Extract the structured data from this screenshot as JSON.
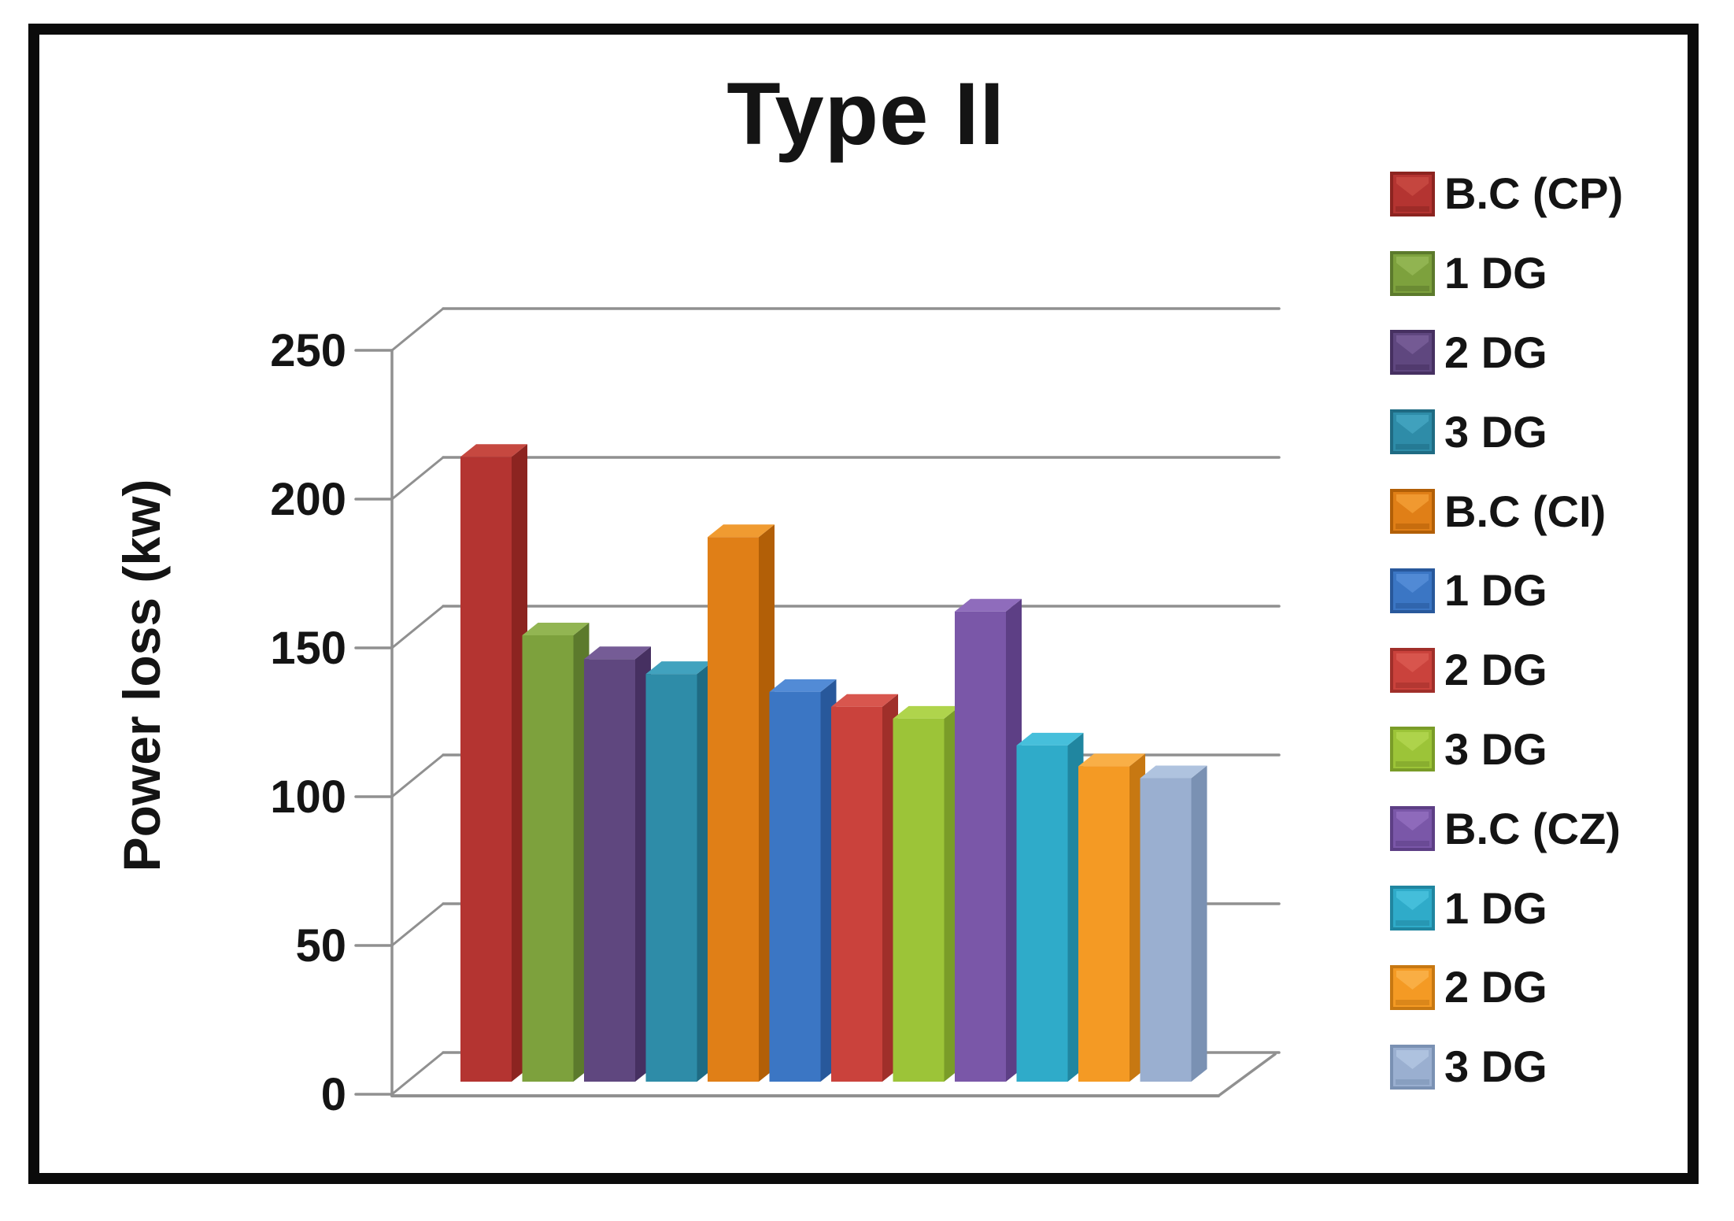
{
  "figure": {
    "background": "#ffffff",
    "border_color": "#0b0b0b",
    "gridline_color": "#909090"
  },
  "chart_data": {
    "type": "bar",
    "style": "3d-column",
    "title": "Type II",
    "ylabel": "Power loss (kw)",
    "xlabel": "",
    "ylim": [
      0,
      250
    ],
    "yticks": [
      0,
      50,
      100,
      150,
      200,
      250
    ],
    "grid": true,
    "legend_position": "right",
    "categories": [
      "B.C (CP)",
      "1 DG",
      "2 DG",
      "3 DG",
      "B.C (CI)",
      "1 DG",
      "2 DG",
      "3 DG",
      "B.C (CZ)",
      "1 DG",
      "2 DG",
      "3 DG"
    ],
    "series": [
      {
        "name": "B.C (CP)",
        "value": 210,
        "color": "#B43431",
        "side": "#8C2420",
        "top": "#C64840"
      },
      {
        "name": "1 DG",
        "value": 150,
        "color": "#7DA13D",
        "side": "#5C7A2C",
        "top": "#92B552"
      },
      {
        "name": "2 DG",
        "value": 142,
        "color": "#5F477F",
        "side": "#463061",
        "top": "#755C96"
      },
      {
        "name": "3 DG",
        "value": 137,
        "color": "#2E8CA8",
        "side": "#1F6B83",
        "top": "#41A2BE"
      },
      {
        "name": "B.C (CI)",
        "value": 183,
        "color": "#E07F17",
        "side": "#B25F07",
        "top": "#F09B31"
      },
      {
        "name": "1 DG",
        "value": 131,
        "color": "#3B76C4",
        "side": "#28589B",
        "top": "#528BD6"
      },
      {
        "name": "2 DG",
        "value": 126,
        "color": "#CA423C",
        "side": "#A02F2A",
        "top": "#D8564E"
      },
      {
        "name": "3 DG",
        "value": 122,
        "color": "#9CC438",
        "side": "#7A9C28",
        "top": "#AFD44C"
      },
      {
        "name": "B.C (CZ)",
        "value": 158,
        "color": "#7A57A8",
        "side": "#5D3F85",
        "top": "#8F6CBC"
      },
      {
        "name": "1 DG",
        "value": 113,
        "color": "#2FABC9",
        "side": "#2086A0",
        "top": "#46BFDB"
      },
      {
        "name": "2 DG",
        "value": 106,
        "color": "#F49A24",
        "side": "#C77812",
        "top": "#F9AF47"
      },
      {
        "name": "3 DG",
        "value": 102,
        "color": "#9AAFD0",
        "side": "#7A91B3",
        "top": "#AFC3DF"
      }
    ]
  }
}
